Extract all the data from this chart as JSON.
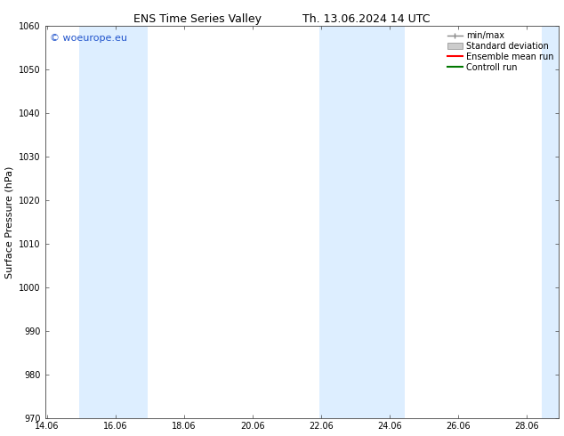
{
  "title_left": "ENS Time Series Valley",
  "title_right": "Th. 13.06.2024 14 UTC",
  "ylabel": "Surface Pressure (hPa)",
  "xlabel": "",
  "watermark": "© woeurope.eu",
  "ylim": [
    970,
    1060
  ],
  "yticks": [
    970,
    980,
    990,
    1000,
    1010,
    1020,
    1030,
    1040,
    1050,
    1060
  ],
  "xlim_start": 14.0,
  "xlim_end": 29.0,
  "xtick_positions": [
    14.06,
    16.06,
    18.06,
    20.06,
    22.06,
    24.06,
    26.06,
    28.06
  ],
  "xtick_labels": [
    "14.06",
    "16.06",
    "18.06",
    "20.06",
    "22.06",
    "24.06",
    "26.06",
    "28.06"
  ],
  "shaded_bands": [
    {
      "x_start": 15.0,
      "x_end": 17.0
    },
    {
      "x_start": 22.0,
      "x_end": 24.5
    },
    {
      "x_start": 28.5,
      "x_end": 29.0
    }
  ],
  "shade_color": "#ddeeff",
  "background_color": "#ffffff",
  "legend_entries": [
    {
      "label": "min/max",
      "color": "#999999",
      "style": "minmax"
    },
    {
      "label": "Standard deviation",
      "color": "#ccddee",
      "style": "band"
    },
    {
      "label": "Ensemble mean run",
      "color": "#ff0000",
      "style": "line"
    },
    {
      "label": "Controll run",
      "color": "#007700",
      "style": "line"
    }
  ],
  "title_fontsize": 9,
  "axis_label_fontsize": 8,
  "tick_fontsize": 7,
  "legend_fontsize": 7,
  "watermark_color": "#2255cc",
  "watermark_fontsize": 8,
  "spine_color": "#444444",
  "tick_color": "#444444"
}
